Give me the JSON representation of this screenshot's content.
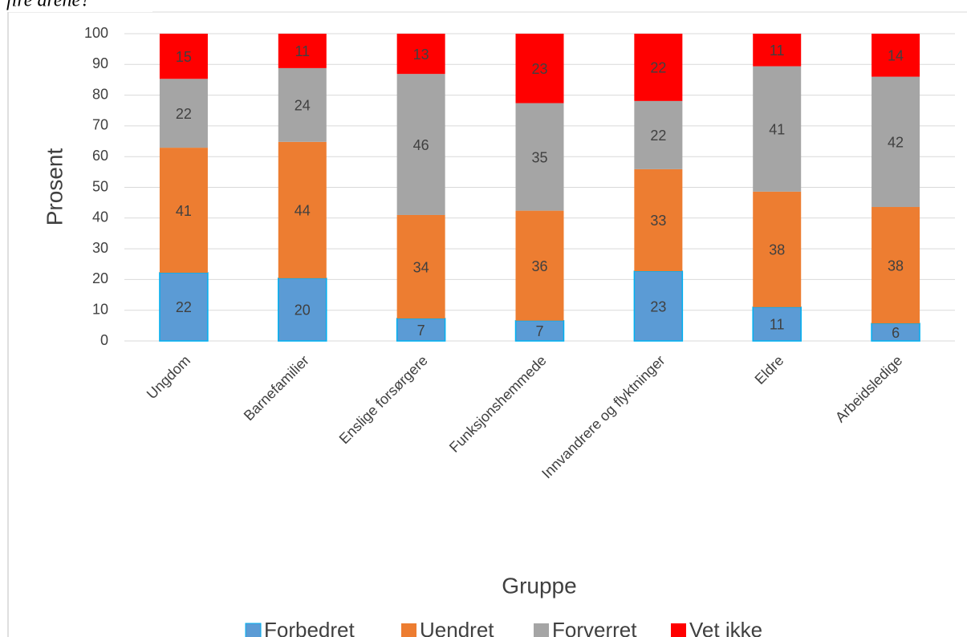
{
  "chart_data": {
    "type": "stacked_bar",
    "title": "fire årene?",
    "x_label": "Gruppe",
    "y_label": "Prosent",
    "categories": [
      "Ungdom",
      "Barnefamilier",
      "Enslige forsørgere",
      "Funksjonshemmede",
      "Innvandrere og flyktninger",
      "Eldre",
      "Arbeidsledige"
    ],
    "series": [
      {
        "name": "Forbedret",
        "color": "#5b9bd5",
        "values": [
          22.2,
          20.4,
          7.3,
          6.6,
          22.7,
          11.0,
          5.7
        ],
        "value_labels": [
          "22",
          "20",
          "7",
          "7",
          "23",
          "11",
          "6"
        ]
      },
      {
        "name": "Uendret",
        "color": "#ed7d31",
        "values": [
          40.7,
          44.4,
          33.7,
          35.8,
          33.2,
          37.6,
          37.9
        ],
        "value_labels": [
          "41",
          "44",
          "34",
          "36",
          "33",
          "38",
          "38"
        ]
      },
      {
        "name": "Forverret",
        "color": "#a5a5a5",
        "values": [
          22.4,
          24.0,
          45.9,
          35.0,
          22.2,
          40.8,
          42.4
        ],
        "value_labels": [
          "22",
          "24",
          "46",
          "35",
          "22",
          "41",
          "42"
        ]
      },
      {
        "name": "Vet ikke",
        "color": "#ff0000",
        "values": [
          14.7,
          11.2,
          13.1,
          22.6,
          21.9,
          10.6,
          14.0
        ],
        "value_labels": [
          "15",
          "11",
          "13",
          "23",
          "22",
          "11",
          "14"
        ]
      }
    ],
    "ylim": [
      0,
      100
    ],
    "yticks": [
      0,
      10,
      20,
      30,
      40,
      50,
      60,
      70,
      80,
      90,
      100
    ],
    "grid": true,
    "legend": "bottom"
  }
}
